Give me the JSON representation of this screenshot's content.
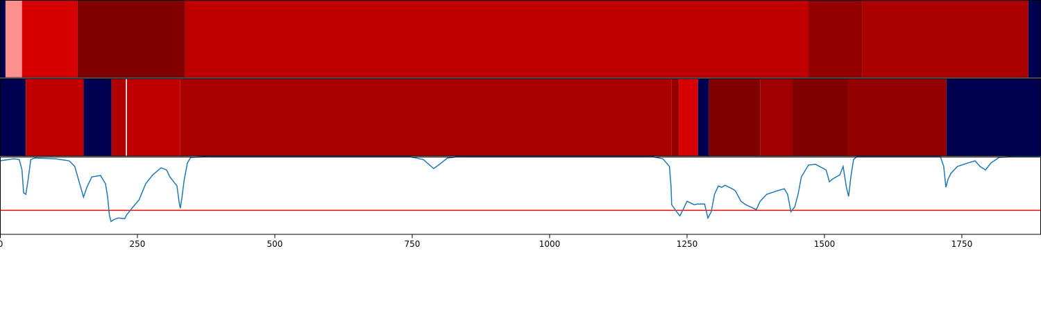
{
  "chart_data": [
    {
      "type": "segments",
      "xlim": [
        0,
        1894
      ],
      "segments": [
        {
          "start": 0,
          "end": 10,
          "color": "#000050"
        },
        {
          "start": 10,
          "end": 40,
          "color": "#ff9090"
        },
        {
          "start": 40,
          "end": 141,
          "color": "#d60000"
        },
        {
          "start": 141,
          "end": 337,
          "color": "#800000"
        },
        {
          "start": 337,
          "end": 1471,
          "color": "#c00000"
        },
        {
          "start": 1471,
          "end": 1569,
          "color": "#940000"
        },
        {
          "start": 1569,
          "end": 1871,
          "color": "#aa0000"
        },
        {
          "start": 1871,
          "end": 1894,
          "color": "#000050"
        }
      ]
    },
    {
      "type": "segments",
      "xlim": [
        0,
        1894
      ],
      "segments": [
        {
          "start": 0,
          "end": 47,
          "color": "#000050"
        },
        {
          "start": 47,
          "end": 152,
          "color": "#c00000"
        },
        {
          "start": 152,
          "end": 203,
          "color": "#000050"
        },
        {
          "start": 203,
          "end": 229,
          "color": "#b00000"
        },
        {
          "start": 229,
          "end": 231,
          "color": "#ffffff"
        },
        {
          "start": 231,
          "end": 328,
          "color": "#c00000"
        },
        {
          "start": 328,
          "end": 1222,
          "color": "#aa0000"
        },
        {
          "start": 1222,
          "end": 1235,
          "color": "#940000"
        },
        {
          "start": 1235,
          "end": 1270,
          "color": "#d60000"
        },
        {
          "start": 1270,
          "end": 1290,
          "color": "#000050"
        },
        {
          "start": 1290,
          "end": 1383,
          "color": "#800000"
        },
        {
          "start": 1383,
          "end": 1442,
          "color": "#a00000"
        },
        {
          "start": 1442,
          "end": 1543,
          "color": "#800000"
        },
        {
          "start": 1543,
          "end": 1722,
          "color": "#940000"
        },
        {
          "start": 1722,
          "end": 1894,
          "color": "#000050"
        }
      ]
    },
    {
      "type": "line",
      "xlim": [
        0,
        1894
      ],
      "ylim": [
        0,
        112
      ],
      "xticks": [
        0,
        250,
        500,
        750,
        1000,
        1250,
        1500,
        1750
      ],
      "color": "#1f77b4",
      "threshold": 35,
      "threshold_color": "#ff0000",
      "x": [
        0,
        25,
        35,
        40,
        43,
        47,
        51,
        56,
        63,
        101,
        126,
        136,
        145,
        152,
        158,
        167,
        183,
        192,
        196,
        199,
        202,
        208,
        215,
        227,
        230,
        240,
        253,
        265,
        278,
        293,
        303,
        309,
        322,
        326,
        328,
        331,
        335,
        341,
        347,
        379,
        745,
        770,
        789,
        798,
        814,
        833,
        1187,
        1206,
        1218,
        1221,
        1222,
        1231,
        1237,
        1244,
        1250,
        1263,
        1269,
        1282,
        1288,
        1294,
        1300,
        1307,
        1313,
        1319,
        1332,
        1338,
        1348,
        1357,
        1376,
        1383,
        1395,
        1414,
        1427,
        1433,
        1439,
        1446,
        1452,
        1458,
        1471,
        1484,
        1503,
        1509,
        1515,
        1528,
        1534,
        1540,
        1544,
        1548,
        1553,
        1559,
        1711,
        1717,
        1721,
        1725,
        1730,
        1742,
        1761,
        1774,
        1783,
        1793,
        1803,
        1818,
        1843,
        1894
      ],
      "values": [
        106,
        109,
        108,
        93,
        60,
        58,
        78,
        108,
        110,
        109,
        106,
        98,
        73,
        54,
        68,
        83,
        85,
        73,
        53,
        28,
        19,
        22,
        24,
        23,
        28,
        38,
        50,
        73,
        86,
        96,
        93,
        83,
        70,
        46,
        38,
        53,
        78,
        103,
        111,
        112,
        112,
        108,
        95,
        100,
        110,
        112,
        112,
        109,
        98,
        68,
        43,
        33,
        27,
        38,
        48,
        43,
        44,
        44,
        24,
        33,
        58,
        70,
        68,
        71,
        66,
        63,
        48,
        43,
        36,
        48,
        58,
        63,
        66,
        58,
        33,
        40,
        58,
        83,
        100,
        101,
        93,
        76,
        80,
        86,
        98,
        68,
        55,
        83,
        108,
        112,
        112,
        98,
        68,
        80,
        88,
        98,
        103,
        106,
        98,
        93,
        103,
        111,
        112,
        112
      ]
    }
  ]
}
